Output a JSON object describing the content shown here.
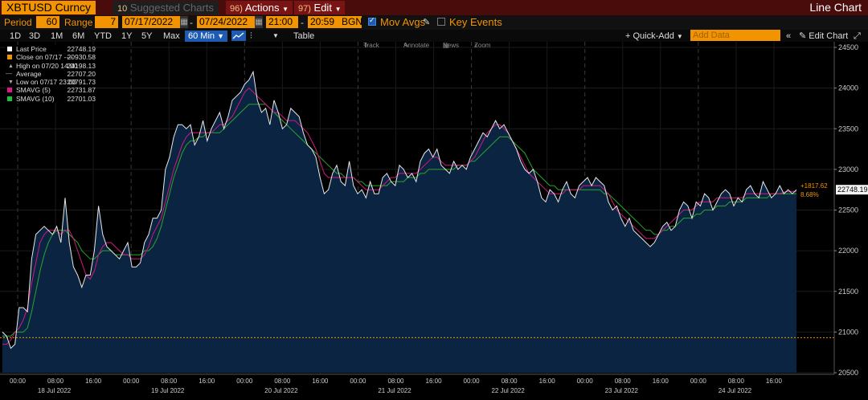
{
  "header": {
    "ticker": "XBTUSD Curncy",
    "suggested_charts": "Suggested Charts",
    "suggested_num": "10",
    "actions_num": "96)",
    "actions_label": "Actions",
    "edit_num": "97)",
    "edit_label": "Edit",
    "view_title": "Line Chart"
  },
  "controls": {
    "period_label": "Period",
    "period_value": "60",
    "range_label": "Range",
    "range_value": "7",
    "start_date": "07/17/2022",
    "dash": "-",
    "end_date": "07/24/2022",
    "start_time": "21:00",
    "end_time": "20:59",
    "tz": "BGN",
    "mov_avgs_label": "Mov Avgs",
    "key_events_label": "Key Events"
  },
  "periods": [
    "1D",
    "3D",
    "1M",
    "6M",
    "YTD",
    "1Y",
    "5Y",
    "Max"
  ],
  "periods_selected": "60 Min",
  "table_label": "Table",
  "quick_add_label": "Quick-Add",
  "add_data_placeholder": "Add Data",
  "edit_chart_label": "Edit Chart",
  "chart_tools": [
    "Track",
    "Annotate",
    "News",
    "Zoom"
  ],
  "legend": [
    {
      "name": "Last Price",
      "value": "22748.19",
      "color": "#ffffff"
    },
    {
      "name": "Close on 07/17 ----",
      "value": "20930.58",
      "color": "#f29400"
    },
    {
      "name": "High on 07/20 14:00",
      "value": "24198.13",
      "color": ""
    },
    {
      "name": "Average",
      "value": "22707.20",
      "color": ""
    },
    {
      "name": "Low on 07/17 23:00",
      "value": "20791.73",
      "color": ""
    },
    {
      "name": "SMAVG (5)",
      "value": "22731.87",
      "color": "#e0148c"
    },
    {
      "name": "SMAVG (10)",
      "value": "22701.03",
      "color": "#1fbf3a"
    }
  ],
  "colors": {
    "area_fill": "#0b2442",
    "price_line": "#e8e8e8",
    "sma5": "#d01a7e",
    "sma10": "#2aa52a",
    "ref_line": "#f29400",
    "last_badge_bg": "#f2f2f2",
    "change_text": "#f29400"
  },
  "chart_data": {
    "type": "line",
    "title": "",
    "xlabel": "",
    "ylabel": "",
    "ylim": [
      20500,
      24500
    ],
    "yticks": [
      20500,
      21000,
      21500,
      22000,
      22500,
      23000,
      23500,
      24000,
      24500
    ],
    "x_tick_labels": [
      "00:00",
      "08:00",
      "16:00",
      "00:00",
      "08:00",
      "16:00",
      "00:00",
      "08:00",
      "16:00",
      "00:00",
      "08:00",
      "16:00",
      "00:00",
      "08:00",
      "16:00",
      "00:00",
      "08:00",
      "16:00",
      "00:00",
      "08:00",
      "16:00"
    ],
    "x_day_labels": [
      "18 Jul 2022",
      "19 Jul 2022",
      "20 Jul 2022",
      "21 Jul 2022",
      "22 Jul 2022",
      "23 Jul 2022",
      "24 Jul 2022"
    ],
    "reference_line": 20930.58,
    "last_value": "22748.19",
    "change": "+1817.62",
    "change_pct": "8.68%",
    "series": [
      {
        "name": "Last Price",
        "values": [
          21000,
          20950,
          20800,
          20850,
          21300,
          21300,
          21250,
          21900,
          22200,
          22250,
          22300,
          22250,
          22200,
          22300,
          22100,
          22650,
          22100,
          21800,
          21700,
          21550,
          21700,
          21700,
          22000,
          22550,
          22200,
          22050,
          22000,
          21950,
          21900,
          22000,
          22100,
          21800,
          21800,
          21850,
          22100,
          22200,
          22400,
          22400,
          22500,
          23000,
          23150,
          23400,
          23550,
          23550,
          23500,
          23550,
          23300,
          23400,
          23600,
          23350,
          23500,
          23600,
          23700,
          23500,
          23650,
          23850,
          23900,
          23950,
          24050,
          24100,
          24200,
          23850,
          23700,
          23750,
          23550,
          23850,
          23700,
          23500,
          23550,
          23750,
          23700,
          23650,
          23450,
          23300,
          23250,
          23150,
          22900,
          22700,
          22750,
          22950,
          23050,
          22850,
          22800,
          23100,
          22800,
          22700,
          22750,
          22650,
          22850,
          22700,
          22700,
          22900,
          22950,
          22850,
          22800,
          23050,
          23000,
          22900,
          22950,
          22850,
          23100,
          23200,
          23250,
          23150,
          23250,
          23050,
          23000,
          22950,
          23100,
          23000,
          23050,
          23000,
          23150,
          23250,
          23350,
          23450,
          23400,
          23500,
          23600,
          23500,
          23550,
          23450,
          23350,
          23250,
          23100,
          23000,
          22950,
          23000,
          22850,
          22650,
          22600,
          22750,
          22700,
          22600,
          22750,
          22850,
          22700,
          22650,
          22800,
          22850,
          22900,
          22800,
          22900,
          22850,
          22800,
          22600,
          22500,
          22550,
          22400,
          22300,
          22400,
          22250,
          22200,
          22150,
          22100,
          22050,
          22100,
          22200,
          22300,
          22350,
          22250,
          22300,
          22500,
          22600,
          22550,
          22400,
          22600,
          22550,
          22700,
          22650,
          22500,
          22600,
          22700,
          22750,
          22700,
          22550,
          22650,
          22600,
          22750,
          22800,
          22700,
          22650,
          22850,
          22750,
          22650,
          22700,
          22800,
          22700,
          22750,
          22700,
          22750
        ]
      },
      {
        "name": "SMAVG (5)",
        "values": [
          20850,
          20850,
          20900,
          21000,
          21050,
          21150,
          21300,
          21600,
          21850,
          22100,
          22200,
          22250,
          22250,
          22250,
          22200,
          22250,
          22250,
          22150,
          22000,
          21850,
          21700,
          21650,
          21750,
          21950,
          22050,
          22100,
          22100,
          22050,
          22000,
          21950,
          21950,
          21900,
          21900,
          21900,
          21950,
          22050,
          22200,
          22300,
          22400,
          22600,
          22800,
          23000,
          23150,
          23300,
          23400,
          23450,
          23450,
          23450,
          23450,
          23450,
          23450,
          23500,
          23550,
          23550,
          23600,
          23650,
          23750,
          23850,
          23950,
          24000,
          23950,
          23900,
          23850,
          23800,
          23750,
          23700,
          23700,
          23650,
          23600,
          23600,
          23600,
          23550,
          23500,
          23450,
          23350,
          23250,
          23100,
          22950,
          22900,
          22900,
          22900,
          22900,
          22900,
          22900,
          22900,
          22850,
          22800,
          22750,
          22750,
          22750,
          22750,
          22800,
          22850,
          22900,
          22900,
          22950,
          22950,
          22950,
          22950,
          22950,
          23000,
          23050,
          23100,
          23150,
          23150,
          23100,
          23050,
          23050,
          23050,
          23050,
          23050,
          23050,
          23100,
          23150,
          23250,
          23350,
          23450,
          23500,
          23550,
          23550,
          23500,
          23450,
          23350,
          23250,
          23150,
          23050,
          22950,
          22900,
          22850,
          22800,
          22750,
          22700,
          22700,
          22700,
          22700,
          22750,
          22750,
          22750,
          22750,
          22800,
          22800,
          22800,
          22800,
          22800,
          22750,
          22700,
          22600,
          22500,
          22450,
          22400,
          22350,
          22300,
          22250,
          22200,
          22150,
          22150,
          22150,
          22200,
          22250,
          22300,
          22350,
          22400,
          22450,
          22500,
          22500,
          22500,
          22550,
          22600,
          22600,
          22600,
          22600,
          22650,
          22650,
          22650,
          22650,
          22650,
          22650,
          22650,
          22700,
          22700,
          22700,
          22700,
          22700,
          22700,
          22700,
          22700,
          22700,
          22720,
          22730,
          22730,
          22732
        ]
      },
      {
        "name": "SMAVG (10)",
        "values": [
          20950,
          20950,
          20950,
          21000,
          21000,
          21000,
          21050,
          21250,
          21500,
          21750,
          21950,
          22100,
          22200,
          22250,
          22250,
          22250,
          22200,
          22150,
          22100,
          22000,
          21950,
          21900,
          21900,
          21950,
          22000,
          22000,
          22000,
          21950,
          21950,
          21950,
          21950,
          21950,
          21950,
          21950,
          22000,
          22000,
          22050,
          22150,
          22300,
          22500,
          22700,
          22900,
          23050,
          23200,
          23300,
          23350,
          23350,
          23400,
          23400,
          23450,
          23450,
          23450,
          23450,
          23500,
          23550,
          23600,
          23650,
          23700,
          23750,
          23800,
          23800,
          23800,
          23800,
          23800,
          23750,
          23700,
          23650,
          23600,
          23550,
          23500,
          23450,
          23400,
          23350,
          23300,
          23250,
          23200,
          23150,
          23100,
          23050,
          23000,
          22950,
          22950,
          22900,
          22900,
          22900,
          22850,
          22850,
          22800,
          22800,
          22800,
          22800,
          22800,
          22800,
          22850,
          22850,
          22850,
          22850,
          22900,
          22900,
          22900,
          22950,
          22950,
          23000,
          23000,
          23000,
          23000,
          23000,
          23000,
          23000,
          23050,
          23050,
          23050,
          23100,
          23100,
          23150,
          23200,
          23250,
          23300,
          23350,
          23400,
          23400,
          23400,
          23350,
          23300,
          23250,
          23200,
          23100,
          23000,
          22950,
          22900,
          22850,
          22800,
          22800,
          22750,
          22750,
          22750,
          22750,
          22750,
          22750,
          22750,
          22750,
          22750,
          22750,
          22750,
          22700,
          22700,
          22650,
          22600,
          22550,
          22500,
          22450,
          22400,
          22350,
          22300,
          22250,
          22250,
          22200,
          22200,
          22250,
          22250,
          22300,
          22300,
          22350,
          22400,
          22400,
          22400,
          22450,
          22450,
          22500,
          22500,
          22500,
          22550,
          22550,
          22550,
          22600,
          22600,
          22600,
          22600,
          22650,
          22650,
          22650,
          22650,
          22650,
          22650,
          22700,
          22700,
          22700,
          22700,
          22700,
          22700,
          22701
        ]
      }
    ]
  }
}
